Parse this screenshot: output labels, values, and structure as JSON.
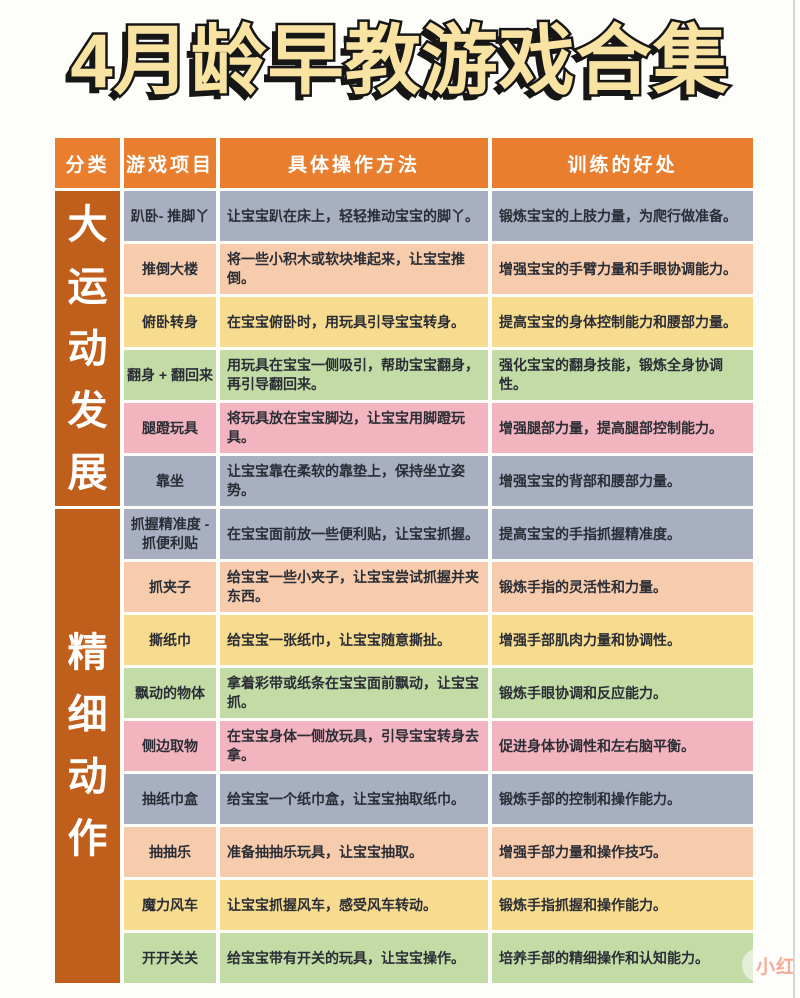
{
  "title": "4月龄早教游戏合集",
  "watermark": "小红",
  "colors": {
    "header_bg": "#E87E2E",
    "category_bg": "#C05E1B",
    "row_gray": "#A7AFC1",
    "row_peach": "#F6CCAD",
    "row_yellow": "#F7DC8F",
    "row_green": "#C3DCA6",
    "row_pink": "#F2B4BF"
  },
  "table": {
    "headers": [
      "分类",
      "游戏项目",
      "具体操作方法",
      "训练的好处"
    ],
    "categories": [
      {
        "label": "大运动发展",
        "rows": 6
      },
      {
        "label": "精细动作",
        "rows": 9
      }
    ],
    "rows": [
      {
        "game": "趴卧- 推脚丫",
        "method": "让宝宝趴在床上，轻轻推动宝宝的脚丫。",
        "benefit": "锻炼宝宝的上肢力量，为爬行做准备。",
        "color": "gray"
      },
      {
        "game": "推倒大楼",
        "method": "将一些小积木或软块堆起来，让宝宝推倒。",
        "benefit": "增强宝宝的手臂力量和手眼协调能力。",
        "color": "peach"
      },
      {
        "game": "俯卧转身",
        "method": "在宝宝俯卧时，用玩具引导宝宝转身。",
        "benefit": "提高宝宝的身体控制能力和腰部力量。",
        "color": "yellow"
      },
      {
        "game": "翻身 + 翻回来",
        "method": "用玩具在宝宝一侧吸引，帮助宝宝翻身，再引导翻回来。",
        "benefit": "强化宝宝的翻身技能，锻炼全身协调性。",
        "color": "green"
      },
      {
        "game": "腿蹬玩具",
        "method": "将玩具放在宝宝脚边，让宝宝用脚蹬玩具。",
        "benefit": "增强腿部力量，提高腿部控制能力。",
        "color": "pink"
      },
      {
        "game": "靠坐",
        "method": "让宝宝靠在柔软的靠垫上，保持坐立姿势。",
        "benefit": "增强宝宝的背部和腰部力量。",
        "color": "gray"
      },
      {
        "game": "抓握精准度 - 抓便利贴",
        "method": "在宝宝面前放一些便利贴，让宝宝抓握。",
        "benefit": "提高宝宝的手指抓握精准度。",
        "color": "gray"
      },
      {
        "game": "抓夹子",
        "method": "给宝宝一些小夹子，让宝宝尝试抓握并夹东西。",
        "benefit": "锻炼手指的灵活性和力量。",
        "color": "peach"
      },
      {
        "game": "撕纸巾",
        "method": "给宝宝一张纸巾，让宝宝随意撕扯。",
        "benefit": "增强手部肌肉力量和协调性。",
        "color": "yellow"
      },
      {
        "game": "飘动的物体",
        "method": "拿着彩带或纸条在宝宝面前飘动，让宝宝抓。",
        "benefit": "锻炼手眼协调和反应能力。",
        "color": "green"
      },
      {
        "game": "侧边取物",
        "method": "在宝宝身体一侧放玩具，引导宝宝转身去拿。",
        "benefit": "促进身体协调性和左右脑平衡。",
        "color": "pink"
      },
      {
        "game": "抽纸巾盒",
        "method": "给宝宝一个纸巾盒，让宝宝抽取纸巾。",
        "benefit": "锻炼手部的控制和操作能力。",
        "color": "gray"
      },
      {
        "game": "抽抽乐",
        "method": "准备抽抽乐玩具，让宝宝抽取。",
        "benefit": "增强手部力量和操作技巧。",
        "color": "peach"
      },
      {
        "game": "魔力风车",
        "method": "让宝宝抓握风车，感受风车转动。",
        "benefit": "锻炼手指抓握和操作能力。",
        "color": "yellow"
      },
      {
        "game": "开开关关",
        "method": "给宝宝带有开关的玩具，让宝宝操作。",
        "benefit": "培养手部的精细操作和认知能力。",
        "color": "green"
      }
    ]
  }
}
